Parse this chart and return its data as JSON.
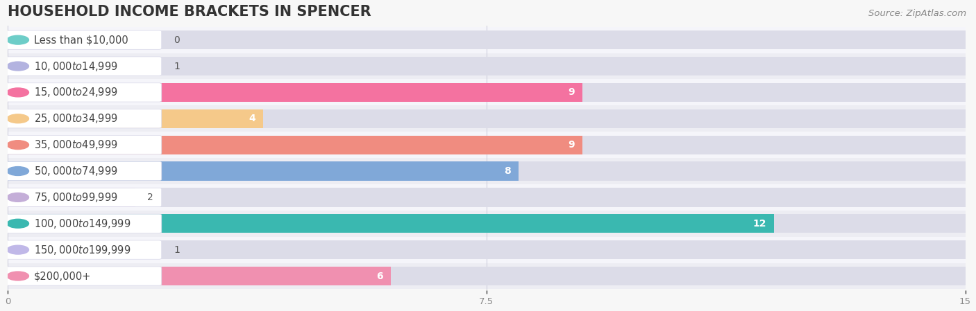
{
  "title": "HOUSEHOLD INCOME BRACKETS IN SPENCER",
  "source": "Source: ZipAtlas.com",
  "categories": [
    "Less than $10,000",
    "$10,000 to $14,999",
    "$15,000 to $24,999",
    "$25,000 to $34,999",
    "$35,000 to $49,999",
    "$50,000 to $74,999",
    "$75,000 to $99,999",
    "$100,000 to $149,999",
    "$150,000 to $199,999",
    "$200,000+"
  ],
  "values": [
    0,
    1,
    9,
    4,
    9,
    8,
    2,
    12,
    1,
    6
  ],
  "bar_colors": [
    "#6dcdc8",
    "#b3b3e0",
    "#f472a0",
    "#f5c98a",
    "#f08c80",
    "#80a8d8",
    "#c4aed8",
    "#3ab8b0",
    "#c0b8e8",
    "#f090b0"
  ],
  "row_bg_colors": [
    "#f0f0f4",
    "#f8f8fc"
  ],
  "bar_bg_color": "#e2e2ea",
  "xlim": [
    0,
    15
  ],
  "xticks": [
    0,
    7.5,
    15
  ],
  "title_fontsize": 15,
  "label_fontsize": 10.5,
  "value_fontsize": 10,
  "source_fontsize": 9.5
}
